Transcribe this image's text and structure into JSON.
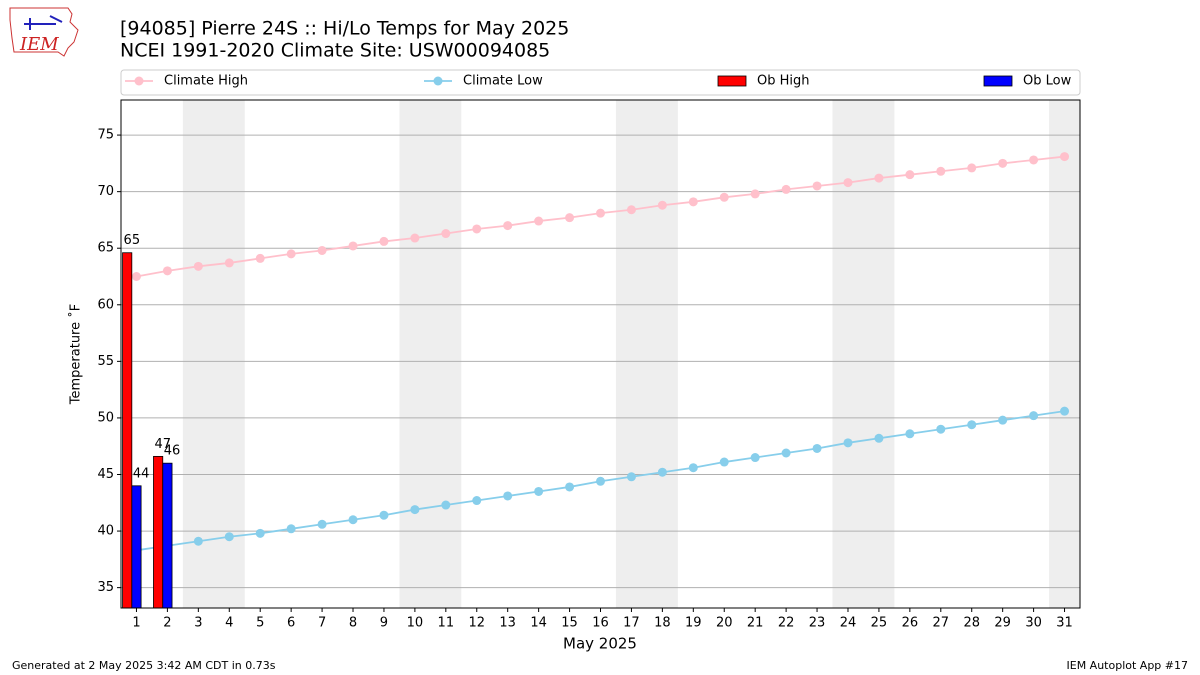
{
  "logo_text": "IEM",
  "chart_data": {
    "type": "bar",
    "title": "[94085] Pierre 24S :: Hi/Lo Temps for May 2025",
    "subtitle": "NCEI 1991-2020 Climate Site: USW00094085",
    "x_label": "May 2025",
    "y_label": "Temperature ˚F",
    "x": [
      1,
      2,
      3,
      4,
      5,
      6,
      7,
      8,
      9,
      10,
      11,
      12,
      13,
      14,
      15,
      16,
      17,
      18,
      19,
      20,
      21,
      22,
      23,
      24,
      25,
      26,
      27,
      28,
      29,
      30,
      31
    ],
    "xlim": [
      0.5,
      31.5
    ],
    "ylim": [
      33.2,
      78.1
    ],
    "yticks": [
      35,
      40,
      45,
      50,
      55,
      60,
      65,
      70,
      75
    ],
    "grid": true,
    "legend": "top",
    "shaded_spans": [
      [
        2.5,
        4.5
      ],
      [
        9.5,
        11.5
      ],
      [
        16.5,
        18.5
      ],
      [
        23.5,
        25.5
      ],
      [
        30.5,
        31.5
      ]
    ],
    "shade_color": "#eeeeee",
    "series": [
      {
        "name": "Climate High",
        "kind": "line",
        "color": "#ffc0cb",
        "values": [
          62.5,
          63.0,
          63.4,
          63.7,
          64.1,
          64.5,
          64.8,
          65.2,
          65.6,
          65.9,
          66.3,
          66.7,
          67.0,
          67.4,
          67.7,
          68.1,
          68.4,
          68.8,
          69.1,
          69.5,
          69.8,
          70.2,
          70.5,
          70.8,
          71.2,
          71.5,
          71.8,
          72.1,
          72.5,
          72.8,
          73.1
        ]
      },
      {
        "name": "Climate Low",
        "kind": "line",
        "color": "#87ceeb",
        "values": [
          38.3,
          38.7,
          39.1,
          39.5,
          39.8,
          40.2,
          40.6,
          41.0,
          41.4,
          41.9,
          42.3,
          42.7,
          43.1,
          43.5,
          43.9,
          44.4,
          44.8,
          45.2,
          45.6,
          46.1,
          46.5,
          46.9,
          47.3,
          47.8,
          48.2,
          48.6,
          49.0,
          49.4,
          49.8,
          50.2,
          50.6
        ]
      },
      {
        "name": "Ob High",
        "kind": "bar",
        "color": "#ff0000",
        "values": [
          64.6,
          46.6,
          null,
          null,
          null,
          null,
          null,
          null,
          null,
          null,
          null,
          null,
          null,
          null,
          null,
          null,
          null,
          null,
          null,
          null,
          null,
          null,
          null,
          null,
          null,
          null,
          null,
          null,
          null,
          null,
          null
        ],
        "value_labels": [
          "65",
          "47",
          null,
          null,
          null,
          null,
          null,
          null,
          null,
          null,
          null,
          null,
          null,
          null,
          null,
          null,
          null,
          null,
          null,
          null,
          null,
          null,
          null,
          null,
          null,
          null,
          null,
          null,
          null,
          null,
          null
        ]
      },
      {
        "name": "Ob Low",
        "kind": "bar",
        "color": "#0000ff",
        "values": [
          44.0,
          46.0,
          null,
          null,
          null,
          null,
          null,
          null,
          null,
          null,
          null,
          null,
          null,
          null,
          null,
          null,
          null,
          null,
          null,
          null,
          null,
          null,
          null,
          null,
          null,
          null,
          null,
          null,
          null,
          null,
          null
        ],
        "value_labels": [
          "44",
          "46",
          null,
          null,
          null,
          null,
          null,
          null,
          null,
          null,
          null,
          null,
          null,
          null,
          null,
          null,
          null,
          null,
          null,
          null,
          null,
          null,
          null,
          null,
          null,
          null,
          null,
          null,
          null,
          null,
          null
        ]
      }
    ],
    "footer_left": "Generated at 2 May 2025 3:42 AM CDT in 0.73s",
    "footer_right": "IEM Autoplot App #17"
  }
}
